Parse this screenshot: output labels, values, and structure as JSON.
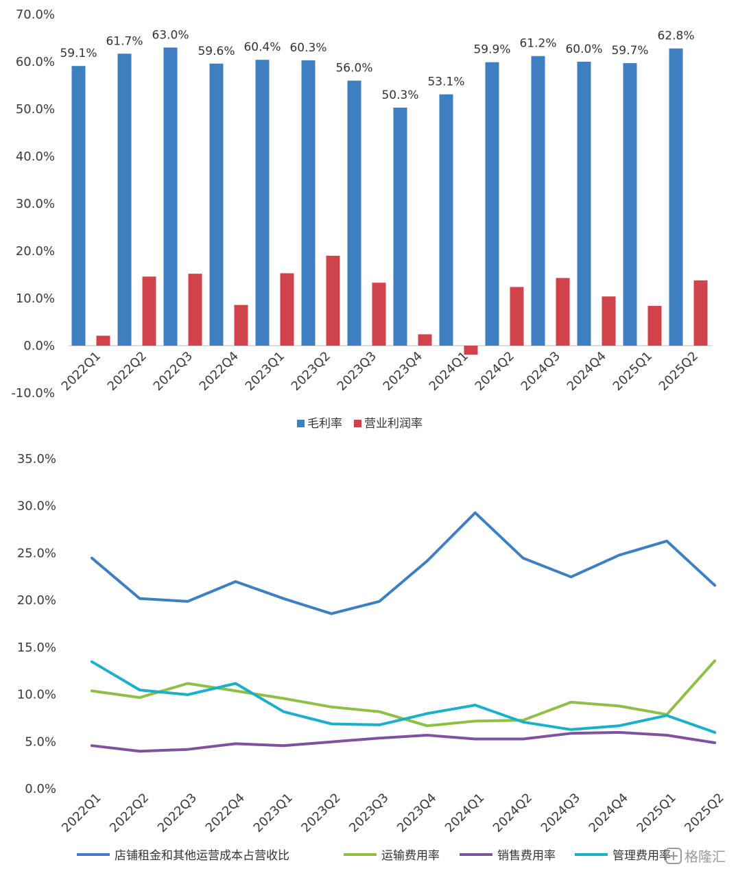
{
  "chart_data": [
    {
      "type": "bar",
      "title": "",
      "categories": [
        "2022Q1",
        "2022Q2",
        "2022Q3",
        "2022Q4",
        "2023Q1",
        "2023Q2",
        "2023Q3",
        "2023Q4",
        "2024Q1",
        "2024Q2",
        "2024Q3",
        "2024Q4",
        "2025Q1",
        "2025Q2"
      ],
      "series": [
        {
          "name": "毛利率",
          "color": "#3d7fc1",
          "values": [
            59.1,
            61.7,
            63.0,
            59.6,
            60.4,
            60.3,
            56.0,
            50.3,
            53.1,
            59.9,
            61.2,
            60.0,
            59.7,
            62.8
          ],
          "data_labels": [
            "59.1%",
            "61.7%",
            "63.0%",
            "59.6%",
            "60.4%",
            "60.3%",
            "56.0%",
            "50.3%",
            "53.1%",
            "59.9%",
            "61.2%",
            "60.0%",
            "59.7%",
            "62.8%"
          ]
        },
        {
          "name": "营业利润率",
          "color": "#d1434a",
          "values": [
            2.1,
            14.6,
            15.2,
            8.6,
            15.3,
            19.0,
            13.3,
            2.4,
            -1.9,
            12.4,
            14.3,
            10.4,
            8.4,
            13.8
          ]
        }
      ],
      "ylim": [
        -10,
        70
      ],
      "yticks": [
        -10,
        0,
        10,
        20,
        30,
        40,
        50,
        60,
        70
      ],
      "ytick_labels": [
        "-10.0%",
        "0.0%",
        "10.0%",
        "20.0%",
        "30.0%",
        "40.0%",
        "50.0%",
        "60.0%",
        "70.0%"
      ],
      "xlabel": "",
      "ylabel": "",
      "legend": [
        "毛利率",
        "营业利润率"
      ],
      "legend_position": "bottom"
    },
    {
      "type": "line",
      "title": "",
      "categories": [
        "2022Q1",
        "2022Q2",
        "2022Q3",
        "2022Q4",
        "2023Q1",
        "2023Q2",
        "2023Q3",
        "2023Q4",
        "2024Q1",
        "2024Q2",
        "2024Q3",
        "2024Q4",
        "2025Q1",
        "2025Q2"
      ],
      "series": [
        {
          "name": "店铺租金和其他运营成本占营收比",
          "color": "#3d7fc1",
          "values": [
            24.4,
            20.1,
            19.8,
            21.9,
            20.1,
            18.5,
            19.8,
            24.1,
            29.2,
            24.4,
            22.4,
            24.7,
            26.2,
            21.5
          ]
        },
        {
          "name": "运输费用率",
          "color": "#8fbf44",
          "values": [
            10.3,
            9.6,
            11.1,
            10.3,
            9.5,
            8.6,
            8.1,
            6.6,
            7.1,
            7.2,
            9.1,
            8.7,
            7.8,
            13.5
          ]
        },
        {
          "name": "销售费用率",
          "color": "#7f52a0",
          "values": [
            4.5,
            3.9,
            4.1,
            4.7,
            4.5,
            4.9,
            5.3,
            5.6,
            5.2,
            5.2,
            5.8,
            5.9,
            5.6,
            4.8
          ]
        },
        {
          "name": "管理费用率",
          "color": "#1ab0c9",
          "values": [
            13.4,
            10.4,
            9.9,
            11.1,
            8.1,
            6.8,
            6.7,
            7.9,
            8.8,
            7.0,
            6.2,
            6.6,
            7.7,
            5.9
          ]
        }
      ],
      "ylim": [
        0,
        35
      ],
      "yticks": [
        0,
        5,
        10,
        15,
        20,
        25,
        30,
        35
      ],
      "ytick_labels": [
        "0.0%",
        "5.0%",
        "10.0%",
        "15.0%",
        "20.0%",
        "25.0%",
        "30.0%",
        "35.0%"
      ],
      "xlabel": "",
      "ylabel": "",
      "legend": [
        "店铺租金和其他运营成本占营收比",
        "运输费用率",
        "销售费用率",
        "管理费用率"
      ],
      "legend_position": "bottom"
    }
  ],
  "watermark": {
    "icon": "gelonghui-logo-icon",
    "text": "格隆汇"
  }
}
